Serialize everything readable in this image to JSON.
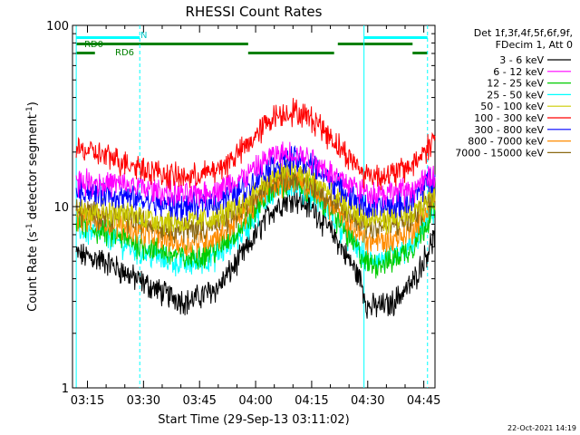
{
  "chart_data": {
    "type": "line",
    "title": "RHESSI Count Rates",
    "xlabel": "Start Time (29-Sep-13 03:11:02)",
    "ylabel_main": "Count Rate (s",
    "ylabel_sup1": "-1",
    "ylabel_mid": " detector segment",
    "ylabel_sup2": "-1",
    "ylabel_end": ")",
    "yscale": "log",
    "ylim": [
      1,
      100
    ],
    "xlim_minutes": [
      "03:11",
      "04:48"
    ],
    "x_tick_labels": [
      "03:15",
      "03:30",
      "03:45",
      "04:00",
      "04:15",
      "04:30",
      "04:45"
    ],
    "y_tick_labels": [
      "1",
      "10",
      "100"
    ],
    "legend": {
      "header_line1": "Det 1f,3f,4f,5f,6f,9f,",
      "header_line2": "FDecim 1, Att 0",
      "placement": "right"
    },
    "series": [
      {
        "name": "3 - 6 keV",
        "color": "#000000",
        "x": [
          "03:12",
          "03:20",
          "03:28",
          "03:36",
          "03:42",
          "03:50",
          "03:58",
          "04:04",
          "04:10",
          "04:16",
          "04:22",
          "04:28",
          "04:30",
          "04:36",
          "04:42",
          "04:48"
        ],
        "values": [
          5.5,
          5.0,
          4.0,
          3.3,
          3.0,
          3.6,
          6.0,
          9.5,
          11.5,
          9.5,
          6.5,
          4.0,
          2.8,
          2.9,
          3.8,
          7.0
        ]
      },
      {
        "name": "6 - 12 keV",
        "color": "#ff00ff",
        "x": [
          "03:12",
          "03:20",
          "03:28",
          "03:36",
          "03:42",
          "03:50",
          "03:58",
          "04:04",
          "04:10",
          "04:16",
          "04:22",
          "04:28",
          "04:30",
          "04:36",
          "04:42",
          "04:48"
        ],
        "values": [
          14,
          13.5,
          13,
          12,
          11.5,
          12.5,
          15,
          19,
          20,
          18,
          14.5,
          12.5,
          12,
          12,
          12.5,
          15
        ]
      },
      {
        "name": "12 - 25 keV",
        "color": "#00cc00",
        "x": [
          "03:12",
          "03:20",
          "03:28",
          "03:36",
          "03:42",
          "03:50",
          "03:58",
          "04:04",
          "04:10",
          "04:16",
          "04:22",
          "04:28",
          "04:30",
          "04:36",
          "04:42",
          "04:48"
        ],
        "values": [
          8,
          7.2,
          6.3,
          5.6,
          5.2,
          5.9,
          8.5,
          12.5,
          14,
          12,
          8.5,
          5.5,
          4.8,
          5.0,
          6.0,
          10
        ]
      },
      {
        "name": "25 - 50 keV",
        "color": "#00ffff",
        "x": [
          "03:12",
          "03:20",
          "03:28",
          "03:36",
          "03:42",
          "03:50",
          "03:58",
          "04:04",
          "04:10",
          "04:16",
          "04:22",
          "04:28",
          "04:30",
          "04:36",
          "04:42",
          "04:48"
        ],
        "values": [
          7.5,
          7.0,
          5.8,
          5.1,
          4.8,
          5.4,
          7.8,
          12,
          13.5,
          11.5,
          8.0,
          5.6,
          5.0,
          5.2,
          6.0,
          10
        ]
      },
      {
        "name": "50 - 100 keV",
        "color": "#cccc00",
        "x": [
          "03:12",
          "03:20",
          "03:28",
          "03:36",
          "03:42",
          "03:50",
          "03:58",
          "04:04",
          "04:10",
          "04:16",
          "04:22",
          "04:28",
          "04:30",
          "04:36",
          "04:42",
          "04:48"
        ],
        "values": [
          10,
          9.5,
          9,
          8.4,
          8.2,
          8.8,
          11,
          15,
          16,
          14,
          11,
          9,
          8.5,
          8.5,
          9,
          12
        ]
      },
      {
        "name": "100 - 300 keV",
        "color": "#ff0000",
        "x": [
          "03:12",
          "03:20",
          "03:28",
          "03:36",
          "03:42",
          "03:50",
          "03:58",
          "04:04",
          "04:10",
          "04:16",
          "04:22",
          "04:28",
          "04:30",
          "04:36",
          "04:42",
          "04:48"
        ],
        "values": [
          21,
          19,
          17,
          15,
          14.5,
          16,
          22,
          31,
          34,
          30,
          22,
          16,
          15,
          15,
          17,
          24
        ]
      },
      {
        "name": "300 - 800 keV",
        "color": "#0000ff",
        "x": [
          "03:12",
          "03:20",
          "03:28",
          "03:36",
          "03:42",
          "03:50",
          "03:58",
          "04:04",
          "04:10",
          "04:16",
          "04:22",
          "04:28",
          "04:30",
          "04:36",
          "04:42",
          "04:48"
        ],
        "values": [
          12.5,
          11.8,
          11,
          10.2,
          10,
          10.8,
          13,
          17,
          18.5,
          16.5,
          13,
          10.5,
          10,
          10,
          11,
          15
        ]
      },
      {
        "name": "800 - 7000 keV",
        "color": "#ff8c00",
        "x": [
          "03:12",
          "03:20",
          "03:28",
          "03:36",
          "03:42",
          "03:50",
          "03:58",
          "04:04",
          "04:10",
          "04:16",
          "04:22",
          "04:28",
          "04:30",
          "04:36",
          "04:42",
          "04:48"
        ],
        "values": [
          9,
          8.3,
          7.5,
          6.6,
          6.2,
          6.9,
          9.5,
          13,
          14.5,
          12.5,
          9.2,
          7.0,
          6.5,
          6.5,
          7.5,
          11
        ]
      },
      {
        "name": "7000 - 15000 keV",
        "color": "#8b6914",
        "x": [
          "03:12",
          "03:20",
          "03:28",
          "03:36",
          "03:42",
          "03:50",
          "03:58",
          "04:04",
          "04:10",
          "04:16",
          "04:22",
          "04:28",
          "04:30",
          "04:36",
          "04:42",
          "04:48"
        ],
        "values": [
          9.5,
          9.0,
          8.5,
          7.8,
          7.5,
          8.0,
          10,
          14,
          15,
          13,
          10,
          8.2,
          7.8,
          7.8,
          8.5,
          11.5
        ]
      }
    ],
    "annotations": {
      "night_label": "N",
      "rd0_label": "RD0",
      "rd6_label": "RD6",
      "night_intervals": [
        [
          "03:12",
          "03:29"
        ],
        [
          "04:29",
          "04:46"
        ]
      ],
      "rd0_intervals": [
        [
          "03:12",
          "03:58"
        ],
        [
          "04:22",
          "04:42"
        ]
      ],
      "rd6_intervals": [
        [
          "03:12",
          "03:17"
        ],
        [
          "03:58",
          "04:21"
        ],
        [
          "04:42",
          "04:46"
        ]
      ],
      "colors": {
        "night": "#00ffff",
        "rd": "#008000"
      }
    },
    "timestamp": "22-Oct-2021 14:19"
  }
}
